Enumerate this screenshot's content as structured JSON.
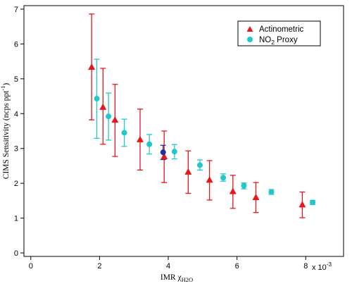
{
  "chart_data": {
    "type": "scatter",
    "xlabel": "IMR χ",
    "xlabel_sub": "H2O",
    "ylabel": "CIMS Sensitivity (ncps ppt",
    "ylabel_sup": "-1",
    "ylabel_end": ")",
    "x_multiplier_prefix": "x 10",
    "x_multiplier_exponent": "-3",
    "xlim": [
      -0.0002,
      0.0091
    ],
    "ylim": [
      -0.1,
      7.1
    ],
    "x_ticks": [
      0,
      0.002,
      0.004,
      0.006,
      0.008
    ],
    "x_tick_labels": [
      "0",
      "2",
      "4",
      "6",
      "8"
    ],
    "y_ticks": [
      0,
      1,
      2,
      3,
      4,
      5,
      6,
      7
    ],
    "y_tick_labels": [
      "0",
      "1",
      "2",
      "3",
      "4",
      "5",
      "6",
      "7"
    ],
    "grid": false,
    "legend_position": "top-right",
    "colors": {
      "actinometric": "#e8161b",
      "no2_proxy": "#22c7c9",
      "highlight": "#1f2fa8"
    },
    "series": [
      {
        "name": "Actinometric",
        "marker": "triangle",
        "color": "#e8161b",
        "points": [
          {
            "x": 0.00177,
            "y": 5.33,
            "lo": 3.82,
            "hi": 6.86
          },
          {
            "x": 0.0021,
            "y": 4.18,
            "lo": 3.12,
            "hi": 5.3
          },
          {
            "x": 0.00245,
            "y": 3.81,
            "lo": 2.77,
            "hi": 4.84
          },
          {
            "x": 0.00318,
            "y": 3.25,
            "lo": 2.38,
            "hi": 4.13
          },
          {
            "x": 0.00388,
            "y": 2.76,
            "lo": 2.02,
            "hi": 3.5
          },
          {
            "x": 0.00458,
            "y": 2.32,
            "lo": 1.71,
            "hi": 2.93
          },
          {
            "x": 0.0052,
            "y": 2.09,
            "lo": 1.52,
            "hi": 2.65
          },
          {
            "x": 0.00588,
            "y": 1.76,
            "lo": 1.28,
            "hi": 2.23
          },
          {
            "x": 0.00655,
            "y": 1.59,
            "lo": 1.16,
            "hi": 2.02
          },
          {
            "x": 0.0079,
            "y": 1.38,
            "lo": 1.01,
            "hi": 1.75
          }
        ]
      },
      {
        "name": "NO2 Proxy",
        "name_main": "NO",
        "name_sub": "2",
        "name_rest": " Proxy",
        "marker": "circle",
        "color": "#22c7c9",
        "points": [
          {
            "x": 0.00192,
            "y": 4.43,
            "lo": 3.29,
            "hi": 5.56
          },
          {
            "x": 0.00226,
            "y": 3.92,
            "lo": 3.24,
            "hi": 4.59
          },
          {
            "x": 0.00272,
            "y": 3.45,
            "lo": 3.06,
            "hi": 3.84
          },
          {
            "x": 0.00345,
            "y": 3.12,
            "lo": 2.84,
            "hi": 3.4
          },
          {
            "x": 0.00418,
            "y": 2.91,
            "lo": 2.7,
            "hi": 3.11
          },
          {
            "x": 0.00492,
            "y": 2.52,
            "lo": 2.38,
            "hi": 2.67
          },
          {
            "x": 0.0056,
            "y": 2.16,
            "lo": 2.06,
            "hi": 2.27
          },
          {
            "x": 0.0062,
            "y": 1.93,
            "lo": 1.84,
            "hi": 2.01
          },
          {
            "x": 0.007,
            "y": 1.75,
            "lo": 1.68,
            "hi": 1.82
          },
          {
            "x": 0.0082,
            "y": 1.45,
            "lo": 1.39,
            "hi": 1.51
          }
        ]
      },
      {
        "marker": "circle",
        "color": "#1f2fa8",
        "points": [
          {
            "x": 0.00385,
            "y": 2.89,
            "lo": 2.68,
            "hi": 3.09
          }
        ]
      }
    ]
  }
}
